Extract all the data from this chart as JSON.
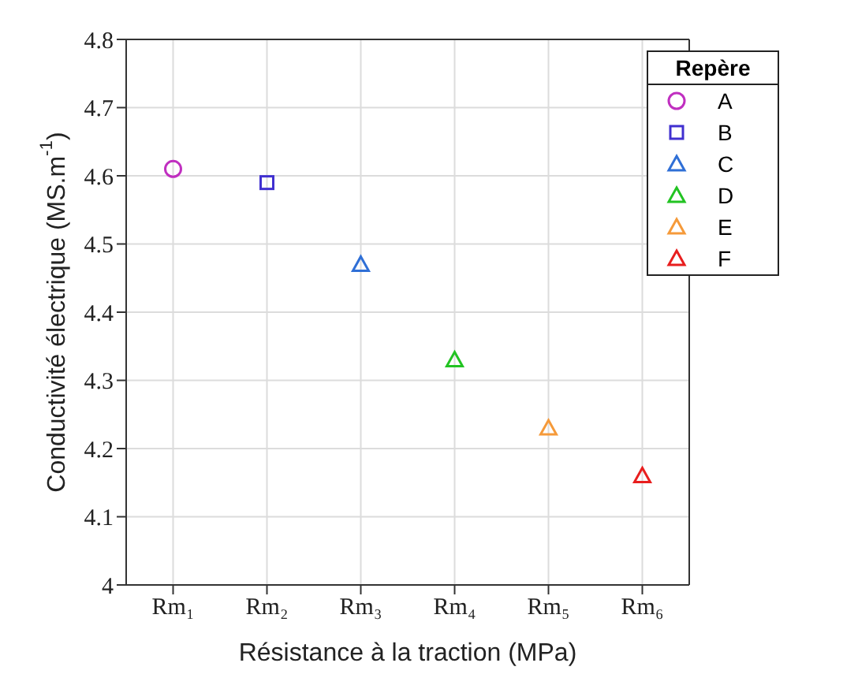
{
  "chart_data": {
    "type": "scatter",
    "xlabel": "Résistance à la traction (MPa)",
    "ylabel": "Conductivité électrique (MS.m$^{-1}$)",
    "legend_title": "Repère",
    "categories": [
      "Rm₁",
      "Rm₂",
      "Rm₃",
      "Rm₄",
      "Rm₅",
      "Rm₆"
    ],
    "series": [
      {
        "name": "A",
        "color": "#c02fc0",
        "marker": "circle",
        "values": [
          4.61,
          null,
          null,
          null,
          null,
          null
        ]
      },
      {
        "name": "B",
        "color": "#4030d0",
        "marker": "square",
        "values": [
          null,
          4.59,
          null,
          null,
          null,
          null
        ]
      },
      {
        "name": "C",
        "color": "#2f6fd6",
        "marker": "triangle",
        "values": [
          null,
          null,
          4.47,
          null,
          null,
          null
        ]
      },
      {
        "name": "D",
        "color": "#22c322",
        "marker": "triangle",
        "values": [
          null,
          null,
          null,
          4.33,
          null,
          null
        ]
      },
      {
        "name": "E",
        "color": "#f59a3a",
        "marker": "triangle",
        "values": [
          null,
          null,
          null,
          null,
          4.23,
          null
        ]
      },
      {
        "name": "F",
        "color": "#e81e1e",
        "marker": "triangle",
        "values": [
          null,
          null,
          null,
          null,
          null,
          4.16
        ]
      }
    ],
    "ylim": [
      4,
      4.8
    ],
    "yticks": [
      4,
      4.1,
      4.2,
      4.3,
      4.4,
      4.5,
      4.6,
      4.7,
      4.8
    ],
    "grid": true,
    "legend": "top right"
  }
}
